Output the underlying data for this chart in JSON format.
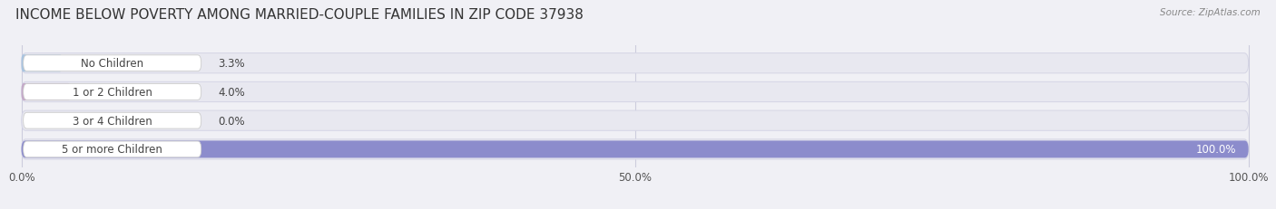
{
  "title": "INCOME BELOW POVERTY AMONG MARRIED-COUPLE FAMILIES IN ZIP CODE 37938",
  "source": "Source: ZipAtlas.com",
  "categories": [
    "No Children",
    "1 or 2 Children",
    "3 or 4 Children",
    "5 or more Children"
  ],
  "values": [
    3.3,
    4.0,
    0.0,
    100.0
  ],
  "bar_colors": [
    "#a8c4e0",
    "#c4a8c8",
    "#7ecec4",
    "#8c8ccc"
  ],
  "bar_bg_color": "#e8e8f0",
  "bar_bg_edge_color": "#d5d5e5",
  "label_bg_color": "#ffffff",
  "label_edge_color": "#cccccc",
  "xtick_labels": [
    "0.0%",
    "50.0%",
    "100.0%"
  ],
  "title_fontsize": 11,
  "tick_fontsize": 8.5,
  "category_fontsize": 8.5,
  "value_label_fontsize": 8.5,
  "background_color": "#f0f0f5",
  "grid_color": "#ccccdd",
  "text_color": "#444444",
  "source_color": "#888888"
}
